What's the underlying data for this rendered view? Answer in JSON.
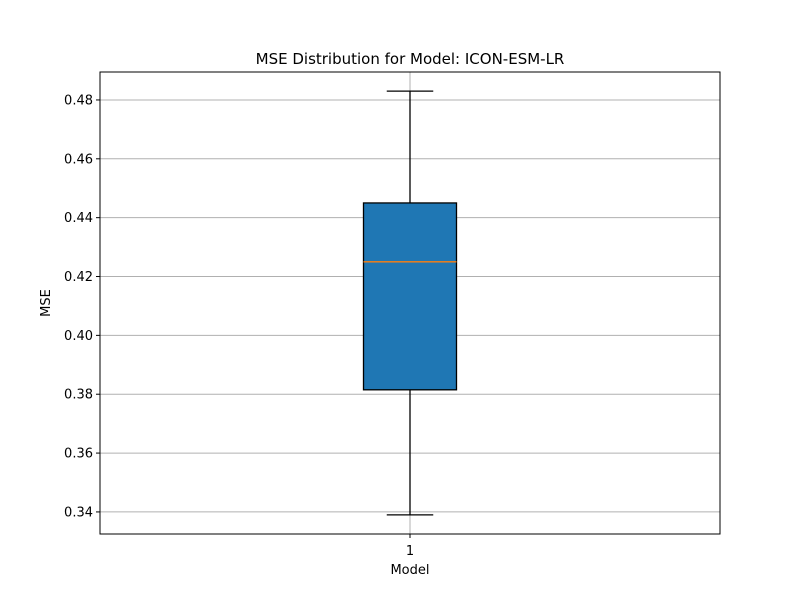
{
  "chart_data": {
    "type": "boxplot",
    "title": "MSE Distribution for Model: ICON-ESM-LR",
    "xlabel": "Model",
    "ylabel": "MSE",
    "categories": [
      "1"
    ],
    "boxes": [
      {
        "category": "1",
        "whisker_low": 0.339,
        "q1": 0.3815,
        "median": 0.425,
        "q3": 0.445,
        "whisker_high": 0.483
      }
    ],
    "ylim": [
      0.3325,
      0.4895
    ],
    "yticks": [
      0.34,
      0.36,
      0.38,
      0.4,
      0.42,
      0.44,
      0.46,
      0.48
    ],
    "ytick_labels": [
      "0.34",
      "0.36",
      "0.38",
      "0.40",
      "0.42",
      "0.44",
      "0.46",
      "0.48"
    ],
    "grid": true,
    "colors": {
      "box_fill": "#1f77b4",
      "median": "#ff7f0e",
      "grid": "#b0b0b0",
      "lines": "#000000"
    }
  }
}
